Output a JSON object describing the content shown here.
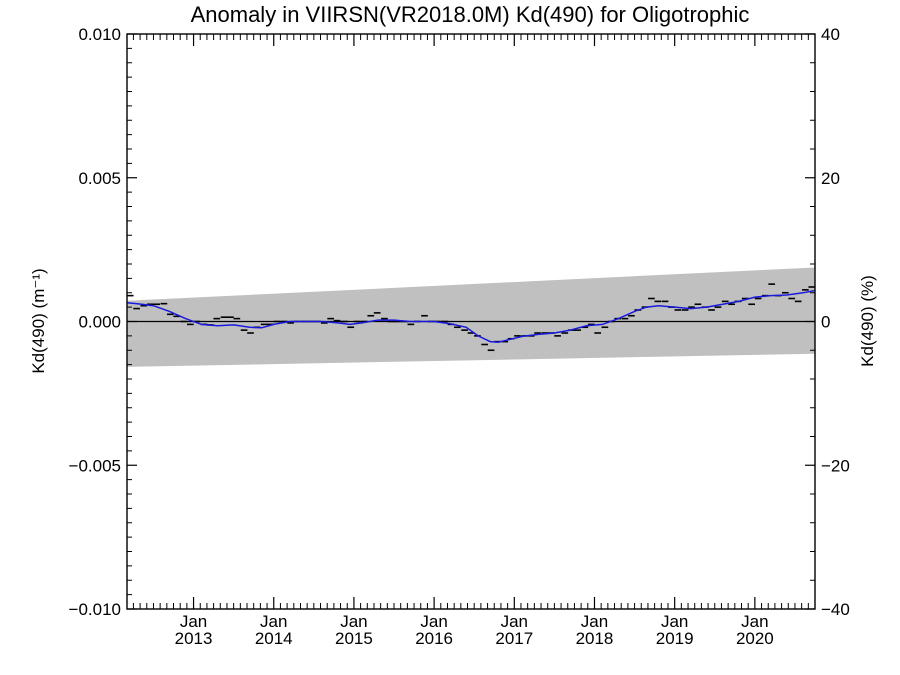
{
  "chart_data": {
    "type": "line",
    "title": "Anomaly in VIIRSN(VR2018.0M) Kd(490) for Oligotrophic",
    "ylabel_left": "Kd(490) (m⁻¹)",
    "ylabel_right": "Kd(490) (%)",
    "xlabel": "",
    "xlim": [
      2012.17,
      2020.75
    ],
    "ylim": [
      -0.01,
      0.01
    ],
    "ylim_right": [
      -40,
      40
    ],
    "yticks_left": [
      "0.010",
      "0.005",
      "0.000",
      "−0.005",
      "−0.010"
    ],
    "yticks_right": [
      "40",
      "20",
      "0",
      "−20",
      "−40"
    ],
    "xticks": [
      {
        "x": 2013.0,
        "month": "Jan",
        "year": "2013"
      },
      {
        "x": 2014.0,
        "month": "Jan",
        "year": "2014"
      },
      {
        "x": 2015.0,
        "month": "Jan",
        "year": "2015"
      },
      {
        "x": 2016.0,
        "month": "Jan",
        "year": "2016"
      },
      {
        "x": 2017.0,
        "month": "Jan",
        "year": "2017"
      },
      {
        "x": 2018.0,
        "month": "Jan",
        "year": "2018"
      },
      {
        "x": 2019.0,
        "month": "Jan",
        "year": "2019"
      },
      {
        "x": 2020.0,
        "month": "Jan",
        "year": "2020"
      }
    ],
    "grid": false,
    "uncertainty_band": {
      "x": [
        2012.17,
        2020.75
      ],
      "upper": [
        0.00072,
        0.00188
      ],
      "lower": [
        -0.00158,
        -0.00112
      ],
      "color": "#c0c0c0"
    },
    "monthly_anomaly": {
      "color": "#000000",
      "points": [
        [
          2012.21,
          0.0009
        ],
        [
          2012.29,
          0.00045
        ],
        [
          2012.38,
          0.00055
        ],
        [
          2012.46,
          0.0006
        ],
        [
          2012.54,
          0.0006
        ],
        [
          2012.63,
          0.00062
        ],
        [
          2012.71,
          0.00025
        ],
        [
          2012.79,
          0.00018
        ],
        [
          2012.88,
          0.0
        ],
        [
          2012.96,
          -0.0001
        ],
        [
          2013.04,
          0.0
        ],
        [
          2013.13,
          -0.0001
        ],
        [
          2013.21,
          -0.00012
        ],
        [
          2013.29,
          0.0001
        ],
        [
          2013.38,
          0.00015
        ],
        [
          2013.46,
          0.00015
        ],
        [
          2013.54,
          0.0001
        ],
        [
          2013.63,
          -0.0003
        ],
        [
          2013.71,
          -0.0004
        ],
        [
          2013.79,
          -0.0002
        ],
        [
          2013.88,
          -0.0001
        ],
        [
          2013.96,
          -0.0001
        ],
        [
          2014.04,
          0.0
        ],
        [
          2014.13,
          0.0
        ],
        [
          2014.21,
          -5e-05
        ],
        [
          2014.29,
          0.0
        ],
        [
          2014.38,
          0.0
        ],
        [
          2014.46,
          0.0
        ],
        [
          2014.54,
          0.0
        ],
        [
          2014.63,
          -5e-05
        ],
        [
          2014.71,
          0.0001
        ],
        [
          2014.79,
          3e-05
        ],
        [
          2014.88,
          0.0
        ],
        [
          2014.96,
          -0.0002
        ],
        [
          2015.04,
          0.0
        ],
        [
          2015.13,
          0.0
        ],
        [
          2015.21,
          0.0002
        ],
        [
          2015.29,
          0.0003
        ],
        [
          2015.38,
          0.0001
        ],
        [
          2015.46,
          0.0
        ],
        [
          2015.54,
          0.0
        ],
        [
          2015.63,
          0.0
        ],
        [
          2015.71,
          -0.0001
        ],
        [
          2015.79,
          0.0
        ],
        [
          2015.88,
          0.0002
        ],
        [
          2015.96,
          0.0
        ],
        [
          2016.04,
          0.0
        ],
        [
          2016.13,
          0.0
        ],
        [
          2016.21,
          -0.0001
        ],
        [
          2016.29,
          -0.0002
        ],
        [
          2016.38,
          -0.0003
        ],
        [
          2016.46,
          -0.0004
        ],
        [
          2016.54,
          -0.0005
        ],
        [
          2016.63,
          -0.0008
        ],
        [
          2016.71,
          -0.001
        ],
        [
          2016.79,
          -0.0007
        ],
        [
          2016.88,
          -0.0007
        ],
        [
          2016.96,
          -0.0006
        ],
        [
          2017.04,
          -0.0005
        ],
        [
          2017.13,
          -0.0005
        ],
        [
          2017.21,
          -0.0005
        ],
        [
          2017.29,
          -0.0004
        ],
        [
          2017.38,
          -0.0004
        ],
        [
          2017.46,
          -0.0004
        ],
        [
          2017.54,
          -0.0005
        ],
        [
          2017.63,
          -0.0004
        ],
        [
          2017.71,
          -0.0003
        ],
        [
          2017.79,
          -0.0003
        ],
        [
          2017.88,
          -0.0002
        ],
        [
          2017.96,
          -0.0001
        ],
        [
          2018.04,
          -0.0004
        ],
        [
          2018.13,
          -0.0002
        ],
        [
          2018.21,
          0.0
        ],
        [
          2018.29,
          0.0001
        ],
        [
          2018.38,
          0.0001
        ],
        [
          2018.46,
          0.0002
        ],
        [
          2018.54,
          0.0004
        ],
        [
          2018.63,
          0.0005
        ],
        [
          2018.71,
          0.0008
        ],
        [
          2018.79,
          0.0007
        ],
        [
          2018.88,
          0.0007
        ],
        [
          2018.96,
          0.0005
        ],
        [
          2019.04,
          0.0004
        ],
        [
          2019.13,
          0.0004
        ],
        [
          2019.21,
          0.0005
        ],
        [
          2019.29,
          0.0006
        ],
        [
          2019.38,
          0.0005
        ],
        [
          2019.46,
          0.0004
        ],
        [
          2019.54,
          0.0005
        ],
        [
          2019.63,
          0.0007
        ],
        [
          2019.71,
          0.0006
        ],
        [
          2019.79,
          0.0007
        ],
        [
          2019.88,
          0.0008
        ],
        [
          2019.96,
          0.0006
        ],
        [
          2020.04,
          0.0008
        ],
        [
          2020.13,
          0.0009
        ],
        [
          2020.21,
          0.0013
        ],
        [
          2020.29,
          0.0009
        ],
        [
          2020.38,
          0.001
        ],
        [
          2020.46,
          0.0008
        ],
        [
          2020.54,
          0.0007
        ],
        [
          2020.63,
          0.0011
        ],
        [
          2020.71,
          0.0012
        ]
      ]
    },
    "smoothed_series": {
      "color": "#1a1adf",
      "points": [
        [
          2012.17,
          0.00065
        ],
        [
          2012.3,
          0.00062
        ],
        [
          2012.5,
          0.00055
        ],
        [
          2012.7,
          0.00035
        ],
        [
          2012.9,
          0.0001
        ],
        [
          2013.1,
          -0.0001
        ],
        [
          2013.3,
          -0.00015
        ],
        [
          2013.5,
          -0.00012
        ],
        [
          2013.7,
          -0.0002
        ],
        [
          2013.85,
          -0.00022
        ],
        [
          2014.0,
          -0.0001
        ],
        [
          2014.2,
          0.0
        ],
        [
          2014.4,
          0.0
        ],
        [
          2014.6,
          0.0
        ],
        [
          2014.8,
          -5e-05
        ],
        [
          2014.95,
          -0.0001
        ],
        [
          2015.1,
          -5e-05
        ],
        [
          2015.3,
          5e-05
        ],
        [
          2015.5,
          5e-05
        ],
        [
          2015.7,
          0.0
        ],
        [
          2015.9,
          0.0
        ],
        [
          2016.0,
          0.0
        ],
        [
          2016.2,
          -8e-05
        ],
        [
          2016.4,
          -0.0002
        ],
        [
          2016.55,
          -0.0005
        ],
        [
          2016.7,
          -0.0007
        ],
        [
          2016.8,
          -0.00072
        ],
        [
          2016.95,
          -0.00062
        ],
        [
          2017.1,
          -0.00052
        ],
        [
          2017.3,
          -0.00045
        ],
        [
          2017.5,
          -0.0004
        ],
        [
          2017.7,
          -0.0003
        ],
        [
          2017.9,
          -0.00015
        ],
        [
          2018.1,
          -0.0001
        ],
        [
          2018.3,
          0.0001
        ],
        [
          2018.5,
          0.00035
        ],
        [
          2018.65,
          0.0005
        ],
        [
          2018.8,
          0.00055
        ],
        [
          2019.0,
          0.0005
        ],
        [
          2019.2,
          0.00045
        ],
        [
          2019.4,
          0.0005
        ],
        [
          2019.6,
          0.0006
        ],
        [
          2019.8,
          0.0007
        ],
        [
          2020.0,
          0.00085
        ],
        [
          2020.2,
          0.0009
        ],
        [
          2020.4,
          0.00092
        ],
        [
          2020.6,
          0.001
        ],
        [
          2020.75,
          0.00108
        ]
      ]
    }
  }
}
